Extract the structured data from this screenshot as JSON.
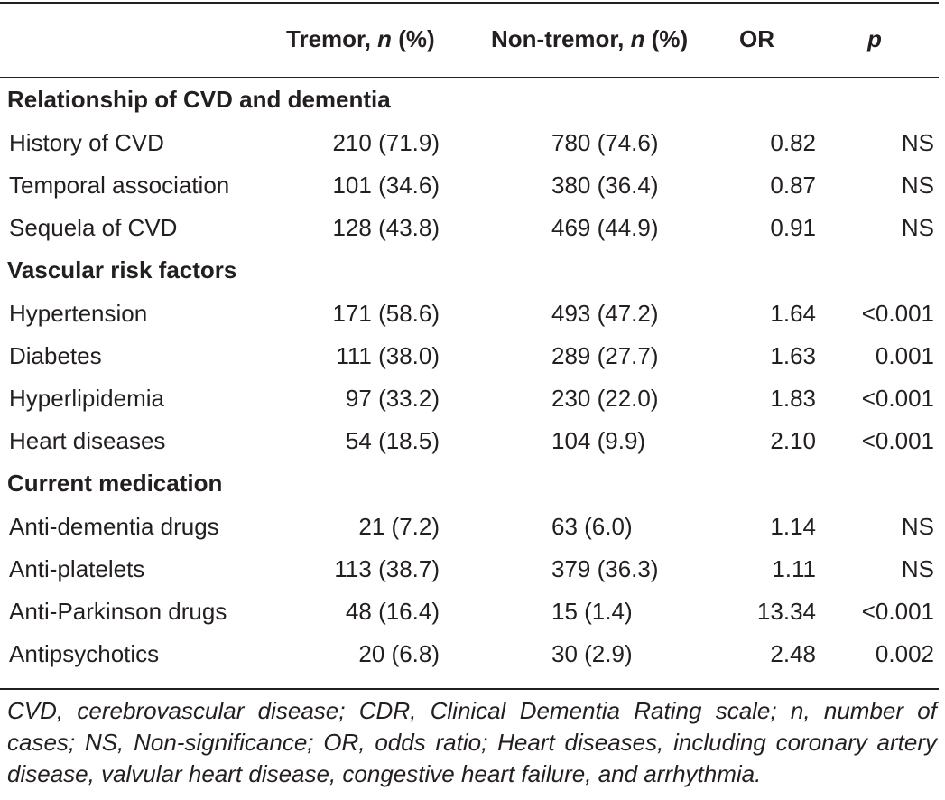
{
  "header": {
    "col_tremor_pre": "Tremor, ",
    "col_tremor_n": "n",
    "col_tremor_post": " (%)",
    "col_nontremor_pre": "Non-tremor, ",
    "col_nontremor_n": "n",
    "col_nontremor_post": " (%)",
    "col_or": "OR",
    "col_p": "p"
  },
  "sections": [
    {
      "title": "Relationship of CVD and dementia",
      "rows": [
        {
          "label": "History of CVD",
          "tremor": "210 (71.9)",
          "nontremor": "780 (74.6)",
          "or": "0.82",
          "p": "NS"
        },
        {
          "label": "Temporal association",
          "tremor": "101 (34.6)",
          "nontremor": "380 (36.4)",
          "or": "0.87",
          "p": "NS"
        },
        {
          "label": "Sequela of CVD",
          "tremor": "128 (43.8)",
          "nontremor": "469 (44.9)",
          "or": "0.91",
          "p": "NS"
        }
      ]
    },
    {
      "title": "Vascular risk factors",
      "rows": [
        {
          "label": "Hypertension",
          "tremor": "171 (58.6)",
          "nontremor": "493 (47.2)",
          "or": "1.64",
          "p": "<0.001"
        },
        {
          "label": "Diabetes",
          "tremor": "111 (38.0)",
          "nontremor": "289 (27.7)",
          "or": "1.63",
          "p": "0.001"
        },
        {
          "label": "Hyperlipidemia",
          "tremor": "97 (33.2)",
          "nontremor": "230 (22.0)",
          "or": "1.83",
          "p": "<0.001"
        },
        {
          "label": "Heart diseases",
          "tremor": "54 (18.5)",
          "nontremor": "104 (9.9)",
          "or": "2.10",
          "p": "<0.001"
        }
      ]
    },
    {
      "title": "Current medication",
      "rows": [
        {
          "label": "Anti-dementia drugs",
          "tremor": "21 (7.2)",
          "nontremor": "63 (6.0)",
          "or": "1.14",
          "p": "NS"
        },
        {
          "label": "Anti-platelets",
          "tremor": "113 (38.7)",
          "nontremor": "379 (36.3)",
          "or": "1.11",
          "p": "NS"
        },
        {
          "label": "Anti-Parkinson drugs",
          "tremor": "48 (16.4)",
          "nontremor": "15 (1.4)",
          "or": "13.34",
          "p": "<0.001"
        },
        {
          "label": "Antipsychotics",
          "tremor": "20 (6.8)",
          "nontremor": "30 (2.9)",
          "or": "2.48",
          "p": "0.002"
        }
      ]
    }
  ],
  "footnote": "CVD, cerebrovascular disease; CDR, Clinical Dementia Rating scale; n, number of cases; NS, Non-significance; OR, odds ratio; Heart diseases, including coronary artery disease, valvular heart disease, congestive heart failure, and arrhythmia."
}
